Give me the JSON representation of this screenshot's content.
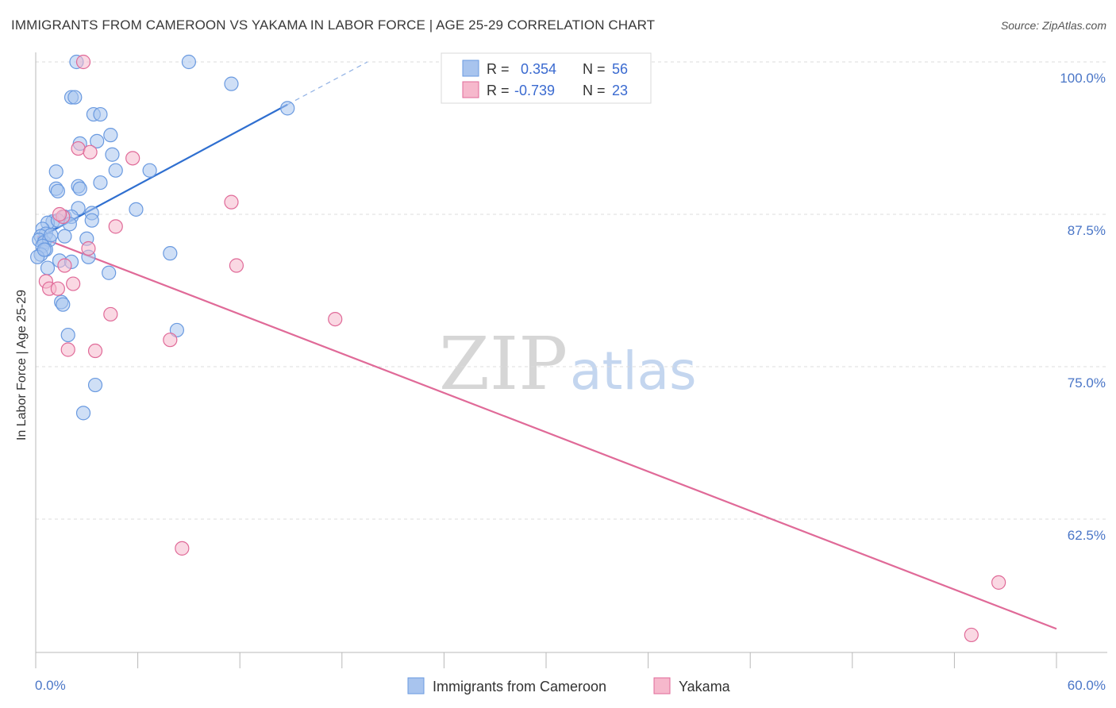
{
  "title": "IMMIGRANTS FROM CAMEROON VS YAKAMA IN LABOR FORCE | AGE 25-29 CORRELATION CHART",
  "source": "Source: ZipAtlas.com",
  "watermark": {
    "zip": "ZIP",
    "atlas": "atlas"
  },
  "chart_data": {
    "type": "scatter",
    "ylabel": "In Labor Force | Age 25-29",
    "xlim": [
      0,
      60
    ],
    "ylim": [
      52,
      101
    ],
    "x_tick_labels": [
      "0.0%",
      "60.0%"
    ],
    "y_ticks": [
      {
        "value": 100.0,
        "label": "100.0%"
      },
      {
        "value": 87.5,
        "label": "87.5%"
      },
      {
        "value": 75.0,
        "label": "75.0%"
      },
      {
        "value": 62.5,
        "label": "62.5%"
      }
    ],
    "grid": true,
    "legend_position": "bottom-center",
    "stats": [
      {
        "r_label": "R =",
        "r_value": "0.354",
        "n_label": "N =",
        "n_value": "56"
      },
      {
        "r_label": "R =",
        "r_value": "-0.739",
        "n_label": "N =",
        "n_value": "23"
      }
    ],
    "series": [
      {
        "name": "Immigrants from Cameroon",
        "color": "#6a9ae0",
        "fill": "#a8c4ee",
        "trend": {
          "x0": 0.1,
          "y0": 85.5,
          "x1": 14.8,
          "y1": 96.5,
          "dash_to_x": 19.5,
          "dash_to_y": 100.0
        },
        "points": [
          [
            2.4,
            100.0
          ],
          [
            9.0,
            100.0
          ],
          [
            11.5,
            98.2
          ],
          [
            2.1,
            97.1
          ],
          [
            2.3,
            97.1
          ],
          [
            3.4,
            95.7
          ],
          [
            3.8,
            95.7
          ],
          [
            14.8,
            96.2
          ],
          [
            4.4,
            94.0
          ],
          [
            3.6,
            93.5
          ],
          [
            2.6,
            93.3
          ],
          [
            4.5,
            92.4
          ],
          [
            1.2,
            91.0
          ],
          [
            4.7,
            91.1
          ],
          [
            6.7,
            91.1
          ],
          [
            3.8,
            90.1
          ],
          [
            1.2,
            89.6
          ],
          [
            1.3,
            89.4
          ],
          [
            2.5,
            89.8
          ],
          [
            2.6,
            89.6
          ],
          [
            2.5,
            88.0
          ],
          [
            5.9,
            87.9
          ],
          [
            3.3,
            87.6
          ],
          [
            1.7,
            87.3
          ],
          [
            2.1,
            87.3
          ],
          [
            3.3,
            87.0
          ],
          [
            1.0,
            86.9
          ],
          [
            2.0,
            86.7
          ],
          [
            0.7,
            86.8
          ],
          [
            0.4,
            86.3
          ],
          [
            0.6,
            85.9
          ],
          [
            0.3,
            85.7
          ],
          [
            0.2,
            85.4
          ],
          [
            0.5,
            85.2
          ],
          [
            0.8,
            85.4
          ],
          [
            1.7,
            85.7
          ],
          [
            3.0,
            85.5
          ],
          [
            0.4,
            84.9
          ],
          [
            0.6,
            84.6
          ],
          [
            0.3,
            84.2
          ],
          [
            0.1,
            84.0
          ],
          [
            7.9,
            84.3
          ],
          [
            3.1,
            84.0
          ],
          [
            1.4,
            83.7
          ],
          [
            2.1,
            83.6
          ],
          [
            0.7,
            83.1
          ],
          [
            4.3,
            82.7
          ],
          [
            1.5,
            80.3
          ],
          [
            1.6,
            80.1
          ],
          [
            8.3,
            78.0
          ],
          [
            1.9,
            77.6
          ],
          [
            3.5,
            73.5
          ],
          [
            2.8,
            71.2
          ],
          [
            0.5,
            84.6
          ],
          [
            1.3,
            87.0
          ],
          [
            0.9,
            85.8
          ]
        ]
      },
      {
        "name": "Yakama",
        "color": "#e06a98",
        "fill": "#f6b8cc",
        "trend": {
          "x0": 0.1,
          "y0": 85.7,
          "x1": 60.0,
          "y1": 53.5
        },
        "points": [
          [
            2.8,
            100.0
          ],
          [
            2.5,
            92.9
          ],
          [
            3.2,
            92.6
          ],
          [
            5.7,
            92.1
          ],
          [
            11.5,
            88.5
          ],
          [
            1.6,
            87.3
          ],
          [
            4.7,
            86.5
          ],
          [
            3.1,
            84.7
          ],
          [
            11.8,
            83.3
          ],
          [
            1.7,
            83.3
          ],
          [
            0.6,
            82.0
          ],
          [
            2.2,
            81.8
          ],
          [
            0.8,
            81.4
          ],
          [
            1.3,
            81.4
          ],
          [
            4.4,
            79.3
          ],
          [
            17.6,
            78.9
          ],
          [
            7.9,
            77.2
          ],
          [
            1.9,
            76.4
          ],
          [
            3.5,
            76.3
          ],
          [
            8.6,
            60.1
          ],
          [
            56.6,
            57.3
          ],
          [
            55.0,
            53.0
          ],
          [
            1.4,
            87.5
          ]
        ]
      }
    ]
  }
}
